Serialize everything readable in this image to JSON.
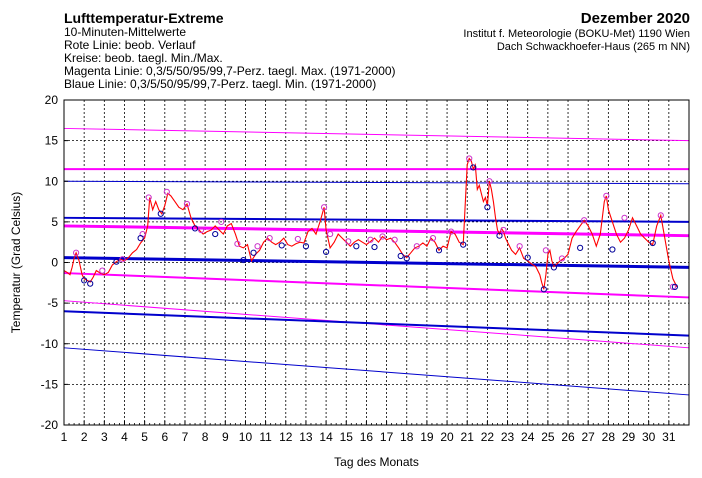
{
  "header": {
    "title": "Lufttemperatur-Extreme",
    "line2": "10-Minuten-Mittelwerte",
    "line3": "Rote Linie: beob. Verlauf",
    "line4": "Kreise: beob. taegl. Min./Max.",
    "line5": "Magenta Linie: 0,3/5/50/95/99,7-Perz. taegl. Max. (1971-2000)",
    "line6": "Blaue Linie: 0,3/5/50/95/99,7-Perz. taegl. Min. (1971-2000)",
    "month": "Dezember 2020",
    "institute": "Institut f. Meteorologie (BOKU-Met) 1190 Wien",
    "location": "Dach Schwackhoefer-Haus (265 m NN)"
  },
  "chart_data": {
    "type": "line",
    "xlabel": "Tag des Monats",
    "ylabel": "Temperatur (Grad Celsius)",
    "xlim": [
      1,
      32
    ],
    "ylim": [
      -20,
      20
    ],
    "x_ticks": [
      "1",
      "2",
      "3",
      "4",
      "5",
      "6",
      "7",
      "8",
      "9",
      "10",
      "11",
      "12",
      "13",
      "14",
      "15",
      "16",
      "17",
      "18",
      "19",
      "20",
      "21",
      "22",
      "23",
      "24",
      "25",
      "26",
      "27",
      "28",
      "29",
      "30",
      "31"
    ],
    "y_ticks": [
      -20,
      -15,
      -10,
      -5,
      0,
      5,
      10,
      15,
      20
    ],
    "grid": true,
    "colors": {
      "observed": "#ff0000",
      "max_percentiles": "#ff00ff",
      "min_percentiles": "#0000cc",
      "max_circles": "#cc33cc",
      "min_circles": "#000099"
    },
    "max_percentiles": [
      {
        "percentile": "99,7",
        "start": 16.5,
        "end": 15.0
      },
      {
        "percentile": "95",
        "start": 11.5,
        "end": 11.5
      },
      {
        "percentile": "50",
        "start": 4.5,
        "end": 3.3
      },
      {
        "percentile": "5",
        "start": -1.3,
        "end": -4.3
      },
      {
        "percentile": "0,3",
        "start": -4.7,
        "end": -10.5
      }
    ],
    "min_percentiles": [
      {
        "percentile": "99,7",
        "start": 10.0,
        "end": 9.7
      },
      {
        "percentile": "95",
        "start": 5.5,
        "end": 5.0
      },
      {
        "percentile": "50",
        "start": 0.6,
        "end": -0.6
      },
      {
        "percentile": "5",
        "start": -6.0,
        "end": -9.0
      },
      {
        "percentile": "0,3",
        "start": -10.5,
        "end": -16.3
      }
    ],
    "observed": [
      [
        1.0,
        -1.0
      ],
      [
        1.15,
        -1.2
      ],
      [
        1.3,
        -1.5
      ],
      [
        1.4,
        -0.6
      ],
      [
        1.5,
        0.5
      ],
      [
        1.6,
        1.2
      ],
      [
        1.75,
        0.2
      ],
      [
        1.9,
        -1.5
      ],
      [
        2.0,
        -2.0
      ],
      [
        2.15,
        -2.2
      ],
      [
        2.3,
        -2.4
      ],
      [
        2.45,
        -1.8
      ],
      [
        2.6,
        -1.0
      ],
      [
        2.8,
        -1.3
      ],
      [
        3.0,
        -1.5
      ],
      [
        3.2,
        -1.2
      ],
      [
        3.4,
        -0.3
      ],
      [
        3.6,
        0.1
      ],
      [
        3.8,
        0.4
      ],
      [
        4.0,
        0.2
      ],
      [
        4.2,
        0.6
      ],
      [
        4.4,
        1.2
      ],
      [
        4.6,
        1.6
      ],
      [
        4.8,
        2.4
      ],
      [
        5.0,
        3.0
      ],
      [
        5.15,
        4.5
      ],
      [
        5.25,
        8.0
      ],
      [
        5.4,
        6.5
      ],
      [
        5.55,
        7.5
      ],
      [
        5.7,
        6.5
      ],
      [
        5.85,
        6.0
      ],
      [
        6.0,
        7.0
      ],
      [
        6.15,
        8.5
      ],
      [
        6.3,
        8.2
      ],
      [
        6.5,
        7.5
      ],
      [
        6.7,
        6.8
      ],
      [
        6.9,
        6.5
      ],
      [
        7.1,
        7.2
      ],
      [
        7.3,
        5.5
      ],
      [
        7.5,
        4.5
      ],
      [
        7.7,
        4.0
      ],
      [
        7.9,
        3.5
      ],
      [
        8.1,
        3.8
      ],
      [
        8.3,
        4.0
      ],
      [
        8.5,
        4.5
      ],
      [
        8.7,
        4.0
      ],
      [
        8.9,
        3.5
      ],
      [
        9.1,
        4.5
      ],
      [
        9.3,
        4.8
      ],
      [
        9.5,
        3.5
      ],
      [
        9.7,
        2.0
      ],
      [
        9.9,
        1.8
      ],
      [
        10.1,
        2.2
      ],
      [
        10.3,
        0.2
      ],
      [
        10.5,
        1.0
      ],
      [
        10.7,
        1.5
      ],
      [
        10.9,
        2.5
      ],
      [
        11.1,
        3.0
      ],
      [
        11.3,
        2.5
      ],
      [
        11.5,
        2.2
      ],
      [
        11.7,
        2.5
      ],
      [
        11.9,
        3.0
      ],
      [
        12.1,
        2.2
      ],
      [
        12.3,
        2.0
      ],
      [
        12.5,
        2.3
      ],
      [
        12.7,
        2.5
      ],
      [
        12.9,
        2.4
      ],
      [
        13.1,
        3.8
      ],
      [
        13.3,
        4.2
      ],
      [
        13.5,
        3.5
      ],
      [
        13.7,
        5.0
      ],
      [
        13.9,
        6.8
      ],
      [
        14.0,
        4.0
      ],
      [
        14.2,
        1.8
      ],
      [
        14.4,
        2.5
      ],
      [
        14.6,
        3.5
      ],
      [
        14.8,
        3.0
      ],
      [
        15.0,
        2.5
      ],
      [
        15.2,
        2.0
      ],
      [
        15.4,
        2.5
      ],
      [
        15.6,
        2.8
      ],
      [
        15.8,
        2.5
      ],
      [
        16.0,
        2.2
      ],
      [
        16.2,
        2.6
      ],
      [
        16.4,
        3.0
      ],
      [
        16.6,
        2.5
      ],
      [
        16.8,
        3.2
      ],
      [
        17.0,
        2.8
      ],
      [
        17.2,
        3.0
      ],
      [
        17.4,
        2.5
      ],
      [
        17.6,
        1.8
      ],
      [
        17.8,
        1.0
      ],
      [
        18.0,
        0.6
      ],
      [
        18.2,
        1.2
      ],
      [
        18.4,
        1.8
      ],
      [
        18.6,
        2.0
      ],
      [
        18.8,
        2.4
      ],
      [
        19.0,
        2.0
      ],
      [
        19.2,
        3.0
      ],
      [
        19.4,
        2.5
      ],
      [
        19.6,
        1.5
      ],
      [
        19.8,
        2.0
      ],
      [
        20.0,
        1.8
      ],
      [
        20.2,
        3.8
      ],
      [
        20.4,
        3.5
      ],
      [
        20.6,
        2.5
      ],
      [
        20.8,
        2.2
      ],
      [
        21.0,
        12.0
      ],
      [
        21.1,
        12.8
      ],
      [
        21.2,
        12.5
      ],
      [
        21.3,
        11.5
      ],
      [
        21.4,
        12.0
      ],
      [
        21.5,
        9.0
      ],
      [
        21.6,
        9.5
      ],
      [
        21.7,
        8.5
      ],
      [
        21.8,
        7.5
      ],
      [
        21.9,
        8.0
      ],
      [
        22.0,
        7.0
      ],
      [
        22.1,
        10.0
      ],
      [
        22.2,
        9.0
      ],
      [
        22.3,
        7.5
      ],
      [
        22.4,
        5.5
      ],
      [
        22.5,
        4.0
      ],
      [
        22.6,
        3.5
      ],
      [
        22.7,
        4.2
      ],
      [
        22.8,
        3.8
      ],
      [
        22.9,
        3.0
      ],
      [
        23.0,
        2.5
      ],
      [
        23.2,
        1.5
      ],
      [
        23.4,
        1.0
      ],
      [
        23.6,
        1.8
      ],
      [
        23.8,
        0.5
      ],
      [
        24.0,
        0.2
      ],
      [
        24.2,
        -0.2
      ],
      [
        24.4,
        -0.5
      ],
      [
        24.6,
        -1.5
      ],
      [
        24.7,
        -2.5
      ],
      [
        24.8,
        -3.3
      ],
      [
        24.9,
        -1.5
      ],
      [
        25.0,
        1.0
      ],
      [
        25.1,
        1.5
      ],
      [
        25.2,
        0.2
      ],
      [
        25.3,
        -0.5
      ],
      [
        25.4,
        -0.3
      ],
      [
        25.6,
        0.2
      ],
      [
        25.8,
        0.5
      ],
      [
        26.0,
        1.0
      ],
      [
        26.2,
        3.0
      ],
      [
        26.4,
        3.8
      ],
      [
        26.6,
        4.5
      ],
      [
        26.8,
        5.2
      ],
      [
        27.0,
        4.5
      ],
      [
        27.2,
        3.5
      ],
      [
        27.4,
        2.0
      ],
      [
        27.6,
        3.5
      ],
      [
        27.8,
        7.5
      ],
      [
        27.9,
        8.2
      ],
      [
        28.0,
        6.5
      ],
      [
        28.2,
        5.0
      ],
      [
        28.4,
        3.5
      ],
      [
        28.6,
        2.5
      ],
      [
        28.8,
        3.0
      ],
      [
        29.0,
        4.0
      ],
      [
        29.2,
        5.5
      ],
      [
        29.4,
        4.5
      ],
      [
        29.6,
        3.5
      ],
      [
        29.8,
        3.0
      ],
      [
        30.0,
        2.5
      ],
      [
        30.2,
        2.2
      ],
      [
        30.4,
        4.5
      ],
      [
        30.6,
        5.8
      ],
      [
        30.8,
        3.0
      ],
      [
        31.0,
        0.2
      ],
      [
        31.2,
        -2.0
      ],
      [
        31.4,
        -3.0
      ]
    ],
    "daily_max": [
      [
        1.6,
        1.2
      ],
      [
        2.9,
        -1.0
      ],
      [
        3.9,
        0.4
      ],
      [
        4.9,
        3.5
      ],
      [
        5.2,
        8.0
      ],
      [
        6.1,
        8.7
      ],
      [
        7.1,
        7.2
      ],
      [
        7.8,
        4.0
      ],
      [
        8.8,
        5.0
      ],
      [
        9.6,
        2.3
      ],
      [
        10.6,
        2.0
      ],
      [
        11.2,
        3.0
      ],
      [
        12.6,
        2.9
      ],
      [
        13.9,
        6.8
      ],
      [
        14.2,
        3.5
      ],
      [
        15.1,
        2.6
      ],
      [
        16.2,
        2.8
      ],
      [
        16.8,
        3.2
      ],
      [
        17.4,
        2.8
      ],
      [
        18.5,
        2.0
      ],
      [
        19.3,
        3.0
      ],
      [
        20.2,
        3.8
      ],
      [
        21.1,
        12.8
      ],
      [
        22.1,
        10.0
      ],
      [
        22.8,
        4.0
      ],
      [
        23.6,
        2.0
      ],
      [
        24.9,
        1.5
      ],
      [
        25.7,
        0.5
      ],
      [
        26.8,
        5.2
      ],
      [
        27.9,
        8.2
      ],
      [
        28.8,
        5.5
      ],
      [
        30.6,
        5.8
      ],
      [
        31.2,
        -3.0
      ]
    ],
    "daily_min": [
      [
        2.0,
        -2.2
      ],
      [
        2.3,
        -2.6
      ],
      [
        3.6,
        0.1
      ],
      [
        4.8,
        3.0
      ],
      [
        5.8,
        6.0
      ],
      [
        7.5,
        4.2
      ],
      [
        8.5,
        3.5
      ],
      [
        9.9,
        0.3
      ],
      [
        10.4,
        1.2
      ],
      [
        11.8,
        2.1
      ],
      [
        13.0,
        2.0
      ],
      [
        14.0,
        1.3
      ],
      [
        15.5,
        2.0
      ],
      [
        16.4,
        1.9
      ],
      [
        17.7,
        0.8
      ],
      [
        18.0,
        0.5
      ],
      [
        19.6,
        1.5
      ],
      [
        20.8,
        2.2
      ],
      [
        21.3,
        11.7
      ],
      [
        22.0,
        6.8
      ],
      [
        22.6,
        3.3
      ],
      [
        24.0,
        0.6
      ],
      [
        24.8,
        -3.3
      ],
      [
        25.3,
        -0.6
      ],
      [
        26.6,
        1.8
      ],
      [
        28.2,
        1.6
      ],
      [
        30.2,
        2.4
      ],
      [
        31.3,
        -3.0
      ]
    ]
  }
}
